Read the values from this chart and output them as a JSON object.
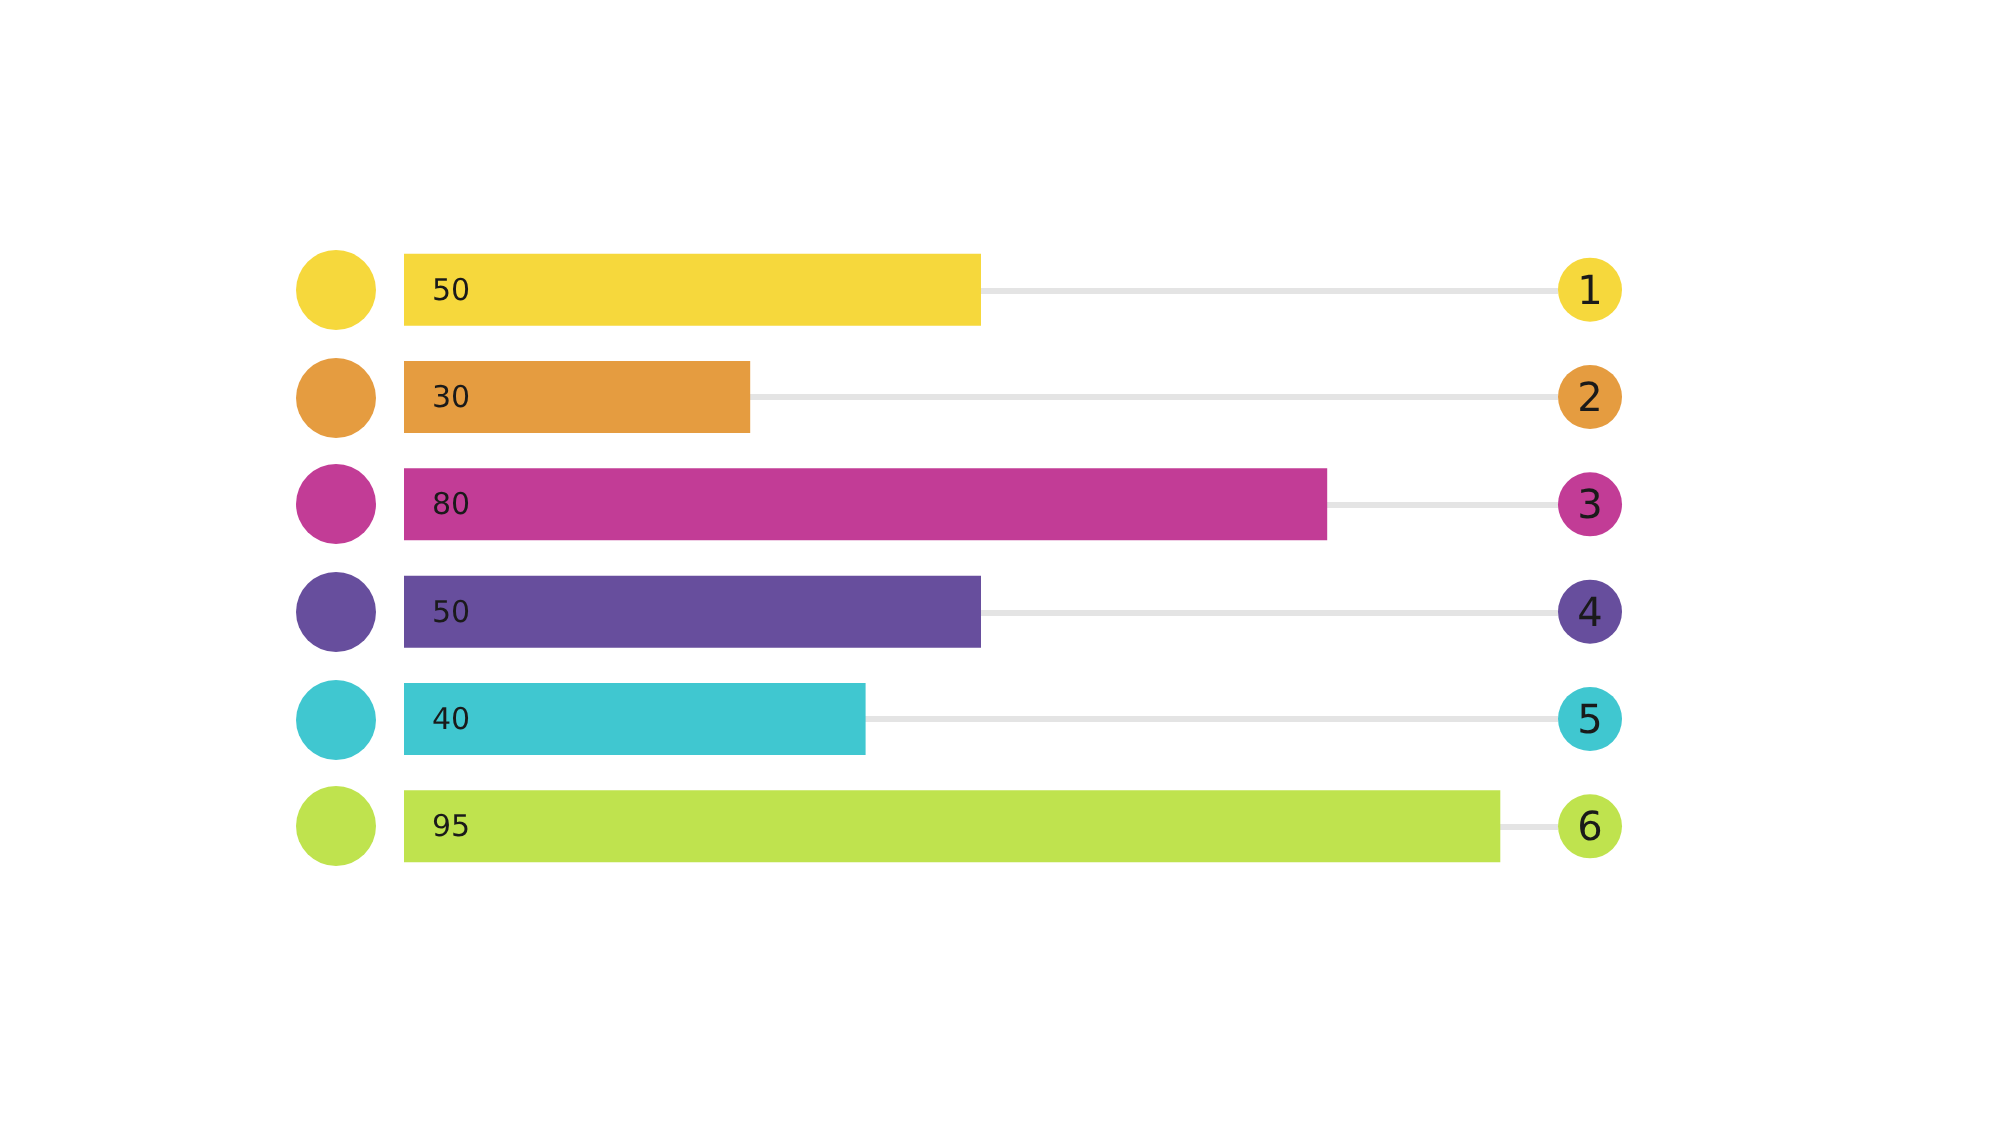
{
  "chart_data": {
    "type": "bar",
    "orientation": "horizontal",
    "categories": [
      "1",
      "2",
      "3",
      "4",
      "5",
      "6"
    ],
    "values": [
      50,
      30,
      80,
      50,
      40,
      95
    ],
    "colors": [
      "#f6d83c",
      "#e59c40",
      "#c23c96",
      "#674e9d",
      "#40c7d0",
      "#bfe34e"
    ],
    "data_labels": true,
    "tick_labels": "y",
    "grid": "y"
  }
}
